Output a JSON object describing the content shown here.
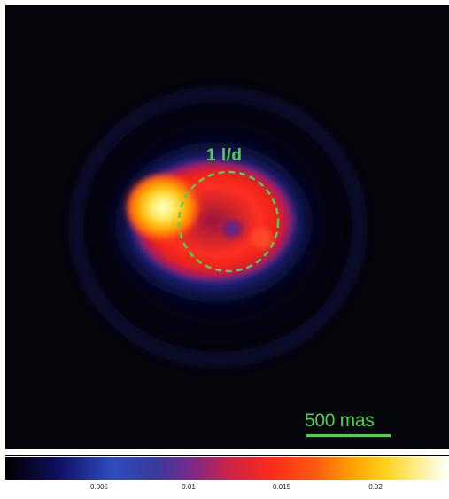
{
  "image": {
    "circle_label": "1 l/d",
    "scale_label": "500 mas",
    "annotation_color": "#4fd14f"
  },
  "colorbar": {
    "ticks": [
      "0.005",
      "0.01",
      "0.015",
      "0.02"
    ],
    "colormap": "heat"
  }
}
